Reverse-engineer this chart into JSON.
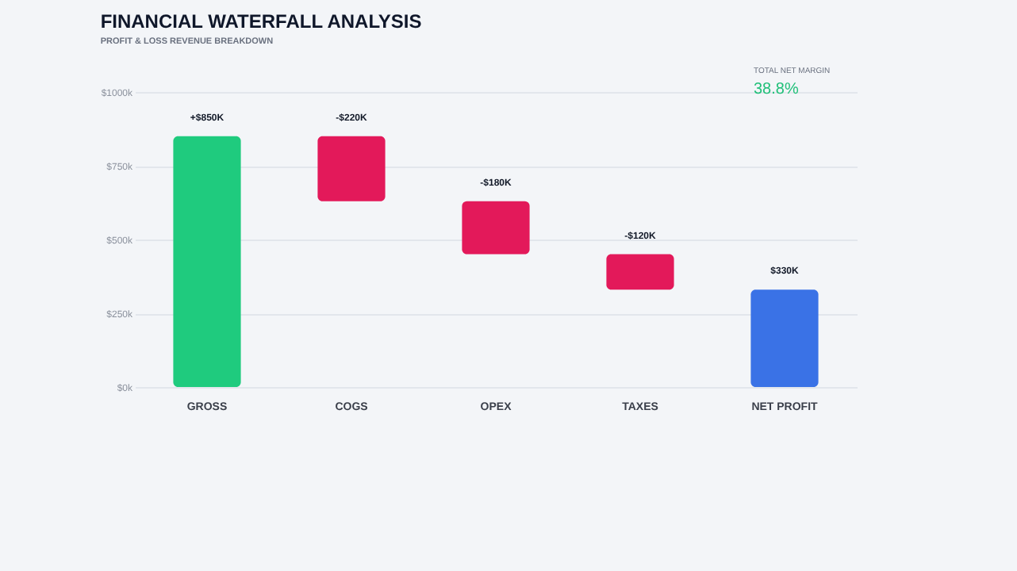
{
  "chart_data": {
    "type": "bar",
    "title": "FINANCIAL WATERFALL ANALYSIS",
    "subtitle": "PROFIT & LOSS REVENUE BREAKDOWN",
    "categories": [
      "GROSS",
      "COGS",
      "OPEX",
      "TAXES",
      "NET PROFIT"
    ],
    "values": [
      850,
      -220,
      -180,
      -120,
      330
    ],
    "base": [
      0,
      850,
      630,
      450,
      0
    ],
    "colors": [
      "#1fcb7e",
      "#e3195a",
      "#e3195a",
      "#e3195a",
      "#3a72e6"
    ],
    "value_labels": [
      "+$850K",
      "-$220K",
      "-$180K",
      "-$120K",
      "$330K"
    ],
    "ylim": [
      0,
      1000
    ],
    "yticks": [
      {
        "value": 0,
        "label": "$0k"
      },
      {
        "value": 250,
        "label": "$250k"
      },
      {
        "value": 500,
        "label": "$500k"
      },
      {
        "value": 750,
        "label": "$750k"
      },
      {
        "value": 1000,
        "label": "$1000k"
      }
    ],
    "grid": "y",
    "annotations": [
      "TOTAL NET MARGIN",
      "38.8%"
    ]
  }
}
